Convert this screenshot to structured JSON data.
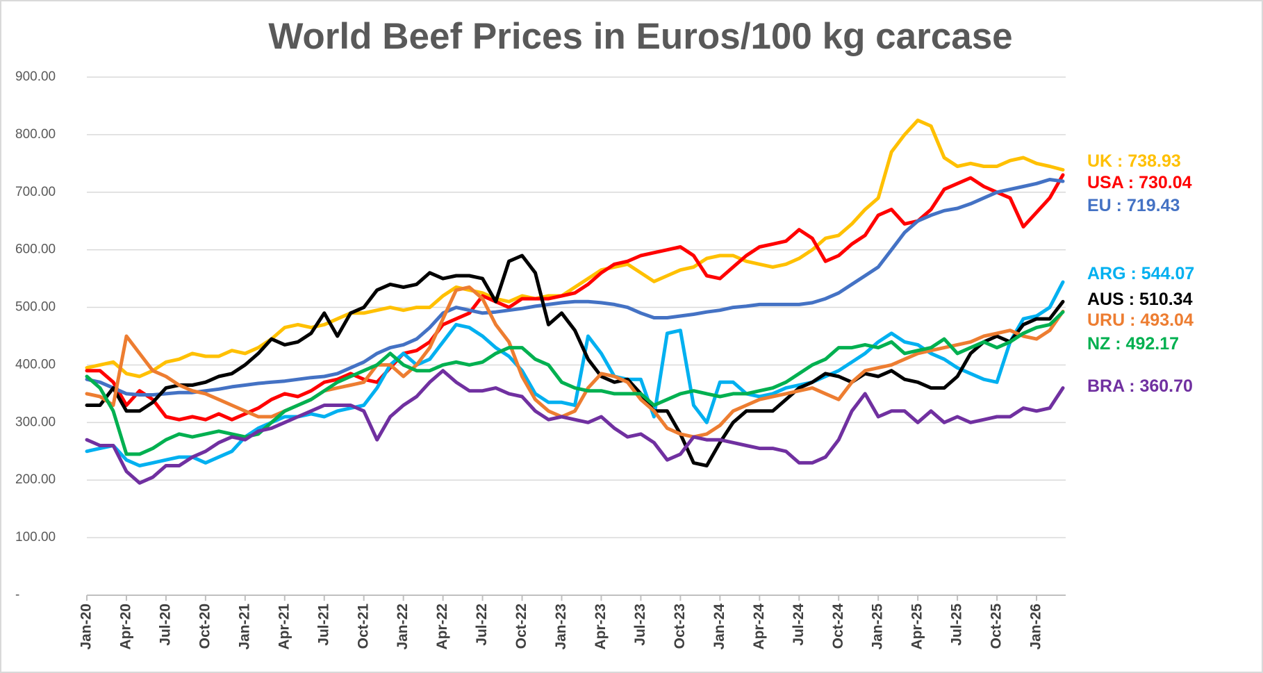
{
  "chart_data": {
    "type": "line",
    "title": "World Beef Prices in Euros/100 kg carcase",
    "categories": [
      "Jan-20",
      null,
      null,
      "Apr-20",
      null,
      null,
      "Jul-20",
      null,
      null,
      "Oct-20",
      null,
      null,
      "Jan-21",
      null,
      null,
      "Apr-21",
      null,
      null,
      "Jul-21",
      null,
      null,
      "Oct-21",
      null,
      null,
      "Jan-22",
      null,
      null,
      "Apr-22",
      null,
      null,
      "Jul-22",
      null,
      null,
      "Oct-22",
      null,
      null,
      "Jan-23",
      null,
      null,
      "Apr-23",
      null,
      null,
      "Jul-23",
      null,
      null,
      "Oct-23",
      null,
      null,
      "Jan-24",
      null,
      null,
      "Apr-24",
      null,
      null,
      "Jul-24",
      null,
      null,
      "Oct-24",
      null,
      null,
      "Jan-25",
      null,
      null,
      "Apr-25",
      null,
      null,
      "Jul-25",
      null,
      null,
      "Oct-25",
      null,
      null,
      "Jan-26",
      null,
      null
    ],
    "ylim": [
      0,
      900
    ],
    "yticks": [
      {
        "value": 0,
        "label": "-"
      },
      {
        "value": 100,
        "label": "100.00"
      },
      {
        "value": 200,
        "label": "200.00"
      },
      {
        "value": 300,
        "label": "300.00"
      },
      {
        "value": 400,
        "label": "400.00"
      },
      {
        "value": 500,
        "label": "500.00"
      },
      {
        "value": 600,
        "label": "600.00"
      },
      {
        "value": 700,
        "label": "700.00"
      },
      {
        "value": 800,
        "label": "800.00"
      },
      {
        "value": 900,
        "label": "900.00"
      }
    ],
    "grid": true,
    "series": [
      {
        "name": "UK",
        "color": "#ffc000",
        "end_label": "738.93",
        "values": [
          395,
          400,
          405,
          385,
          380,
          390,
          405,
          410,
          420,
          415,
          415,
          425,
          420,
          430,
          445,
          465,
          470,
          465,
          470,
          480,
          490,
          490,
          495,
          500,
          495,
          500,
          500,
          520,
          535,
          530,
          525,
          515,
          510,
          520,
          515,
          520,
          520,
          535,
          550,
          565,
          570,
          575,
          560,
          545,
          555,
          565,
          570,
          585,
          590,
          590,
          580,
          575,
          570,
          575,
          585,
          600,
          620,
          625,
          645,
          670,
          690,
          770,
          800,
          825,
          815,
          760,
          745,
          750,
          745,
          745,
          755,
          760,
          750,
          745,
          739
        ]
      },
      {
        "name": "USA",
        "color": "#ff0000",
        "end_label": "730.04",
        "values": [
          390,
          390,
          370,
          330,
          355,
          340,
          310,
          305,
          310,
          305,
          315,
          305,
          315,
          325,
          340,
          350,
          345,
          355,
          370,
          375,
          385,
          375,
          370,
          395,
          420,
          425,
          440,
          470,
          480,
          490,
          520,
          510,
          500,
          515,
          515,
          515,
          520,
          525,
          540,
          560,
          575,
          580,
          590,
          595,
          600,
          605,
          590,
          555,
          550,
          570,
          590,
          605,
          610,
          615,
          635,
          620,
          580,
          590,
          610,
          625,
          660,
          670,
          645,
          650,
          670,
          705,
          715,
          725,
          710,
          700,
          690,
          640,
          665,
          690,
          730
        ]
      },
      {
        "name": "EU",
        "color": "#4472c4",
        "end_label": "719.43",
        "values": [
          375,
          370,
          360,
          350,
          348,
          348,
          350,
          352,
          352,
          355,
          358,
          362,
          365,
          368,
          370,
          372,
          375,
          378,
          380,
          385,
          395,
          405,
          420,
          430,
          435,
          445,
          465,
          490,
          500,
          495,
          490,
          492,
          495,
          498,
          502,
          505,
          508,
          510,
          510,
          508,
          505,
          500,
          490,
          482,
          482,
          485,
          488,
          492,
          495,
          500,
          502,
          505,
          505,
          505,
          505,
          508,
          515,
          525,
          540,
          555,
          570,
          600,
          630,
          650,
          660,
          668,
          672,
          680,
          690,
          700,
          705,
          710,
          715,
          722,
          719
        ]
      },
      {
        "name": "ARG",
        "color": "#00b0f0",
        "end_label": "544.07",
        "values": [
          250,
          255,
          260,
          235,
          225,
          230,
          235,
          240,
          240,
          230,
          240,
          250,
          275,
          290,
          300,
          310,
          310,
          315,
          310,
          320,
          325,
          330,
          360,
          400,
          420,
          400,
          410,
          440,
          470,
          465,
          450,
          430,
          415,
          390,
          350,
          335,
          335,
          330,
          450,
          420,
          380,
          375,
          375,
          310,
          455,
          460,
          330,
          300,
          370,
          370,
          350,
          345,
          350,
          360,
          365,
          370,
          380,
          390,
          405,
          420,
          440,
          455,
          440,
          435,
          420,
          410,
          395,
          385,
          375,
          370,
          440,
          480,
          485,
          500,
          544
        ]
      },
      {
        "name": "AUS",
        "color": "#000000",
        "end_label": "510.34",
        "values": [
          330,
          330,
          360,
          320,
          320,
          335,
          360,
          365,
          365,
          370,
          380,
          385,
          400,
          420,
          445,
          435,
          440,
          455,
          490,
          450,
          490,
          500,
          530,
          540,
          535,
          540,
          560,
          550,
          555,
          555,
          550,
          510,
          580,
          590,
          560,
          470,
          490,
          460,
          410,
          380,
          370,
          375,
          350,
          320,
          320,
          280,
          230,
          225,
          265,
          300,
          320,
          320,
          320,
          340,
          360,
          370,
          385,
          380,
          370,
          385,
          380,
          390,
          375,
          370,
          360,
          360,
          380,
          420,
          440,
          450,
          440,
          470,
          480,
          480,
          510
        ]
      },
      {
        "name": "URU",
        "color": "#ed7d31",
        "end_label": "493.04",
        "values": [
          350,
          345,
          330,
          450,
          420,
          390,
          380,
          365,
          355,
          350,
          340,
          330,
          320,
          310,
          310,
          320,
          330,
          340,
          355,
          360,
          365,
          370,
          400,
          400,
          380,
          400,
          430,
          480,
          530,
          535,
          515,
          470,
          440,
          380,
          340,
          320,
          310,
          320,
          360,
          385,
          380,
          370,
          340,
          320,
          290,
          280,
          275,
          280,
          295,
          320,
          330,
          340,
          345,
          350,
          355,
          360,
          350,
          340,
          370,
          390,
          395,
          400,
          410,
          420,
          425,
          430,
          435,
          440,
          450,
          455,
          460,
          450,
          445,
          460,
          493
        ]
      },
      {
        "name": "NZ",
        "color": "#00b050",
        "end_label": "492.17",
        "values": [
          380,
          360,
          320,
          245,
          245,
          255,
          270,
          280,
          275,
          280,
          285,
          280,
          275,
          280,
          300,
          320,
          330,
          340,
          355,
          370,
          380,
          390,
          400,
          420,
          400,
          390,
          390,
          400,
          405,
          400,
          405,
          420,
          430,
          430,
          410,
          400,
          370,
          360,
          355,
          355,
          350,
          350,
          350,
          330,
          340,
          350,
          355,
          350,
          345,
          350,
          350,
          355,
          360,
          370,
          385,
          400,
          410,
          430,
          430,
          435,
          430,
          440,
          420,
          425,
          430,
          445,
          420,
          430,
          440,
          430,
          440,
          455,
          465,
          470,
          492
        ]
      },
      {
        "name": "BRA",
        "color": "#7030a0",
        "end_label": "360.70",
        "values": [
          270,
          260,
          260,
          215,
          195,
          205,
          225,
          225,
          240,
          250,
          265,
          275,
          270,
          285,
          290,
          300,
          310,
          320,
          330,
          330,
          330,
          320,
          270,
          310,
          330,
          345,
          370,
          390,
          370,
          355,
          355,
          360,
          350,
          345,
          320,
          305,
          310,
          305,
          300,
          310,
          290,
          275,
          280,
          265,
          235,
          245,
          275,
          270,
          270,
          265,
          260,
          255,
          255,
          250,
          230,
          230,
          240,
          270,
          320,
          350,
          310,
          320,
          320,
          300,
          320,
          300,
          310,
          300,
          305,
          310,
          310,
          325,
          320,
          325,
          360
        ]
      }
    ]
  }
}
